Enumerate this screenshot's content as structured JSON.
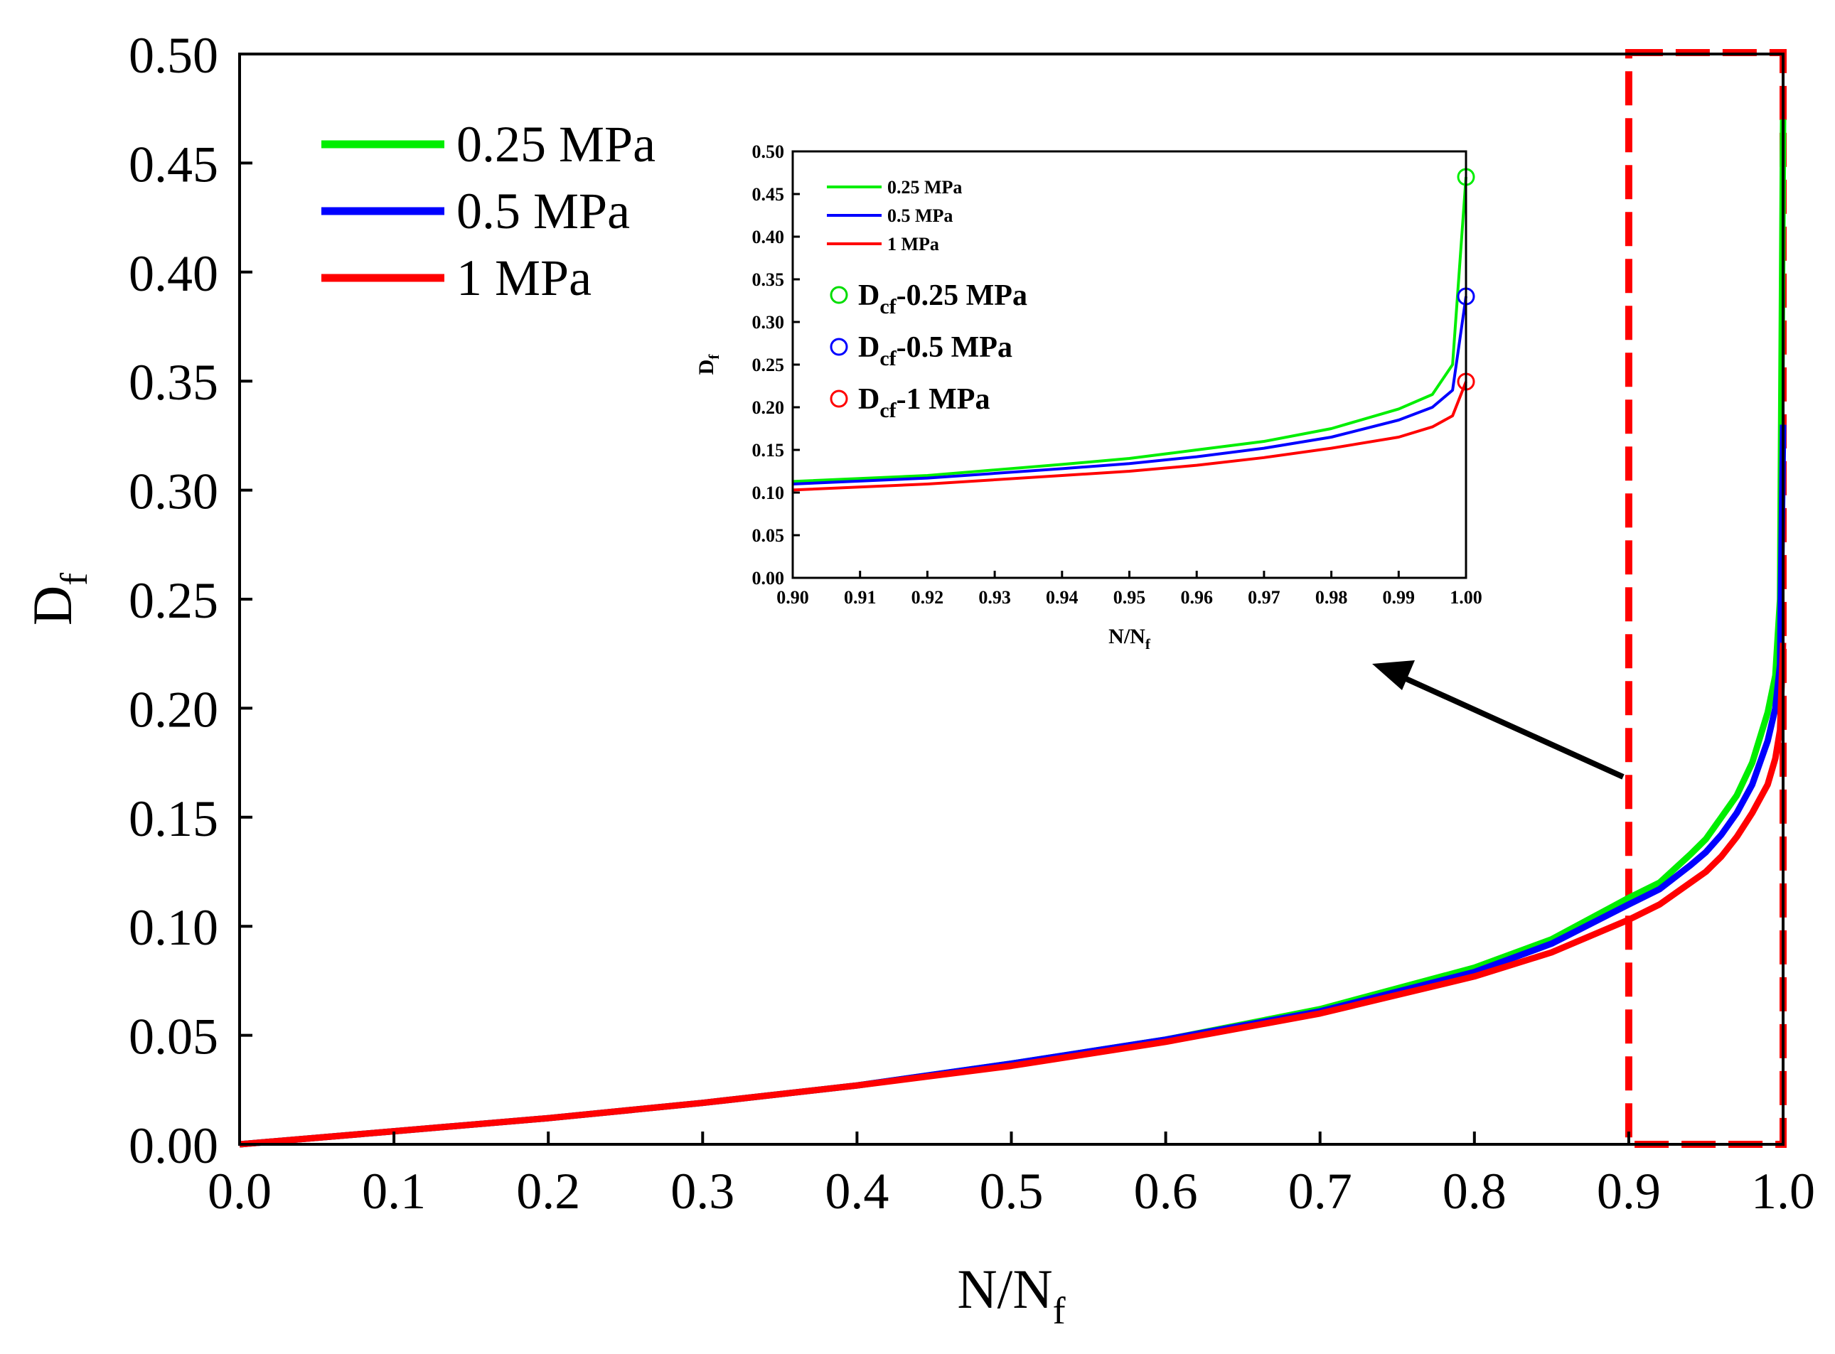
{
  "chart_data": {
    "type": "line",
    "main": {
      "xlabel": "N/N",
      "xlabel_sub": "f",
      "ylabel": "D",
      "ylabel_sub": "f",
      "xlim": [
        0.0,
        1.0
      ],
      "ylim": [
        0.0,
        0.5
      ],
      "xticks": [
        "0.0",
        "0.1",
        "0.2",
        "0.3",
        "0.4",
        "0.5",
        "0.6",
        "0.7",
        "0.8",
        "0.9",
        "1.0"
      ],
      "yticks": [
        "0.00",
        "0.05",
        "0.10",
        "0.15",
        "0.20",
        "0.25",
        "0.30",
        "0.35",
        "0.40",
        "0.45",
        "0.50"
      ],
      "legend_position": "top-left",
      "highlight_region": {
        "x": [
          0.9,
          1.0
        ],
        "y": [
          0.0,
          0.5
        ],
        "style": "red-dashed"
      }
    },
    "inset": {
      "xlabel": "N/N",
      "xlabel_sub": "f",
      "ylabel": "D",
      "ylabel_sub": "f",
      "xlim": [
        0.9,
        1.0
      ],
      "ylim": [
        0.0,
        0.5
      ],
      "xticks": [
        "0.90",
        "0.91",
        "0.92",
        "0.93",
        "0.94",
        "0.95",
        "0.96",
        "0.97",
        "0.98",
        "0.99",
        "1.00"
      ],
      "yticks": [
        "0.00",
        "0.05",
        "0.10",
        "0.15",
        "0.20",
        "0.25",
        "0.30",
        "0.35",
        "0.40",
        "0.45",
        "0.50"
      ],
      "legend_position": "top-left",
      "marker_legend": [
        {
          "prefix": "D",
          "sub": "cf",
          "suffix": "-0.25 MPa",
          "color": "#00dd00"
        },
        {
          "prefix": "D",
          "sub": "cf",
          "suffix": "-0.5 MPa",
          "color": "#0000ff"
        },
        {
          "prefix": "D",
          "sub": "cf",
          "suffix": "-1 MPa",
          "color": "#ff0000"
        }
      ]
    },
    "series": [
      {
        "name": "0.25 MPa",
        "color": "#00ee00",
        "x": [
          0.0,
          0.1,
          0.2,
          0.3,
          0.4,
          0.5,
          0.6,
          0.7,
          0.8,
          0.85,
          0.9,
          0.92,
          0.94,
          0.95,
          0.96,
          0.97,
          0.98,
          0.99,
          0.995,
          0.998,
          1.0
        ],
        "y": [
          0.0,
          0.006,
          0.012,
          0.019,
          0.027,
          0.037,
          0.048,
          0.062,
          0.081,
          0.094,
          0.113,
          0.12,
          0.133,
          0.14,
          0.15,
          0.16,
          0.175,
          0.198,
          0.215,
          0.25,
          0.47
        ],
        "critical": {
          "x": 1.0,
          "y": 0.47
        }
      },
      {
        "name": "0.5 MPa",
        "color": "#0000ff",
        "x": [
          0.0,
          0.1,
          0.2,
          0.3,
          0.4,
          0.5,
          0.6,
          0.7,
          0.8,
          0.85,
          0.9,
          0.92,
          0.94,
          0.95,
          0.96,
          0.97,
          0.98,
          0.99,
          0.995,
          0.998,
          1.0
        ],
        "y": [
          0.0,
          0.006,
          0.012,
          0.019,
          0.027,
          0.037,
          0.048,
          0.061,
          0.079,
          0.092,
          0.11,
          0.117,
          0.128,
          0.134,
          0.142,
          0.152,
          0.165,
          0.185,
          0.2,
          0.22,
          0.33
        ],
        "critical": {
          "x": 1.0,
          "y": 0.33
        }
      },
      {
        "name": "1 MPa",
        "color": "#ff0000",
        "x": [
          0.0,
          0.1,
          0.2,
          0.3,
          0.4,
          0.5,
          0.6,
          0.7,
          0.8,
          0.85,
          0.9,
          0.92,
          0.94,
          0.95,
          0.96,
          0.97,
          0.98,
          0.99,
          0.995,
          0.998,
          1.0
        ],
        "y": [
          0.0,
          0.006,
          0.012,
          0.019,
          0.027,
          0.036,
          0.047,
          0.06,
          0.077,
          0.088,
          0.103,
          0.11,
          0.12,
          0.125,
          0.132,
          0.141,
          0.152,
          0.165,
          0.177,
          0.19,
          0.23
        ],
        "critical": {
          "x": 1.0,
          "y": 0.23
        }
      }
    ]
  }
}
